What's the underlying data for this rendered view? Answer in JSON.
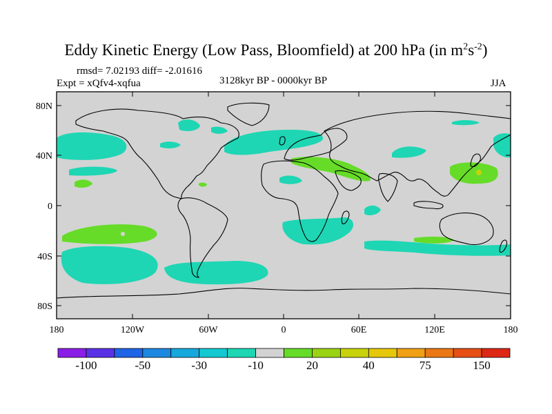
{
  "title": {
    "main": "Eddy Kinetic Energy (Low Pass, Bloomfield) at 200 hPa (in m",
    "sup1": "2",
    "mid": "s",
    "sup2": "-2",
    "end": ")"
  },
  "stats": "rmsd= 7.02193 diff= -2.01616",
  "experiment": "Expt = xQfv4-xqfua",
  "period": "3128kyr BP - 0000kyr BP",
  "season": "JJA",
  "map": {
    "ocean_color": "#d3d3d3",
    "lat_ticks": [
      "80N",
      "40N",
      "0",
      "40S",
      "80S"
    ],
    "lon_ticks": [
      "180",
      "120W",
      "60W",
      "0",
      "60E",
      "120E",
      "180"
    ]
  },
  "colorbar": {
    "colors": [
      "#8a1ee6",
      "#5a32e6",
      "#1e64e6",
      "#1e88e0",
      "#14a8dc",
      "#14c8d2",
      "#1ed6b4",
      "#d2d2d2",
      "#66dc28",
      "#9ad214",
      "#c8d20a",
      "#e6c80a",
      "#f0a014",
      "#eb7814",
      "#e65014",
      "#dc2814"
    ],
    "labels": [
      "-100",
      "-50",
      "-30",
      "-10",
      "20",
      "40",
      "75",
      "150"
    ]
  }
}
